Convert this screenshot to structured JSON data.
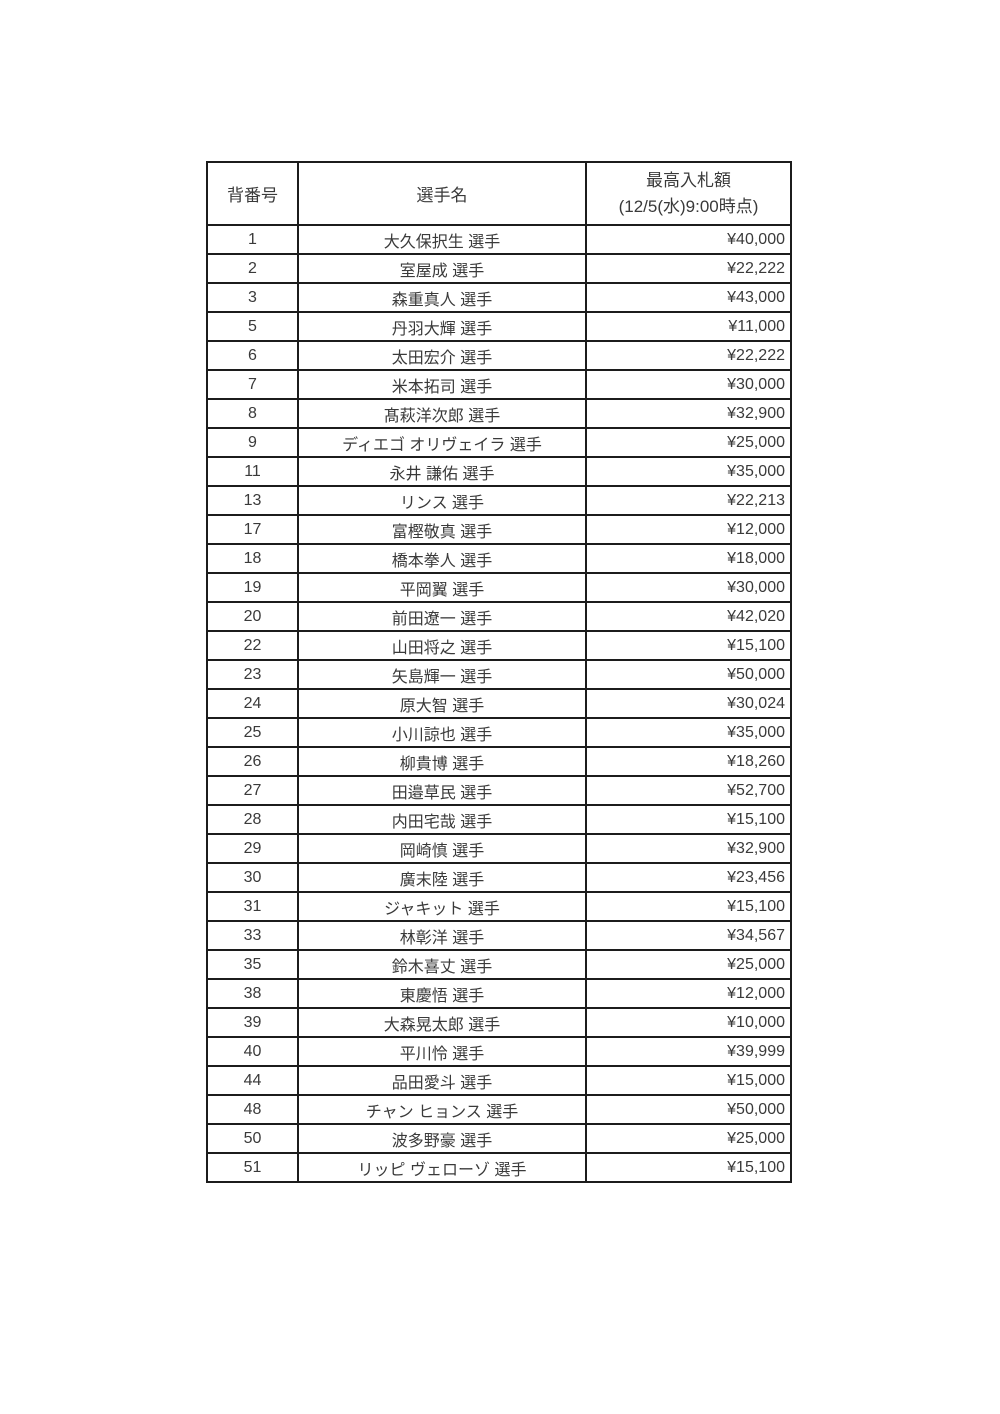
{
  "colors": {
    "background": "#ffffff",
    "border": "#1c1c1c",
    "text": "#3a3a3a"
  },
  "table": {
    "headers": {
      "jersey_number": "背番号",
      "player_name": "選手名",
      "bid_line1": "最高入札額",
      "bid_line2": "(12/5(水)9:00時点)"
    },
    "rows": [
      {
        "number": "1",
        "name": "大久保択生 選手",
        "bid": "¥40,000"
      },
      {
        "number": "2",
        "name": "室屋成 選手",
        "bid": "¥22,222"
      },
      {
        "number": "3",
        "name": "森重真人 選手",
        "bid": "¥43,000"
      },
      {
        "number": "5",
        "name": "丹羽大輝 選手",
        "bid": "¥11,000"
      },
      {
        "number": "6",
        "name": "太田宏介 選手",
        "bid": "¥22,222"
      },
      {
        "number": "7",
        "name": "米本拓司 選手",
        "bid": "¥30,000"
      },
      {
        "number": "8",
        "name": "髙萩洋次郎 選手",
        "bid": "¥32,900"
      },
      {
        "number": "9",
        "name": "ディエゴ オリヴェイラ 選手",
        "bid": "¥25,000"
      },
      {
        "number": "11",
        "name": "永井 謙佑 選手",
        "bid": "¥35,000"
      },
      {
        "number": "13",
        "name": "リンス 選手",
        "bid": "¥22,213"
      },
      {
        "number": "17",
        "name": "富樫敬真 選手",
        "bid": "¥12,000"
      },
      {
        "number": "18",
        "name": "橋本拳人 選手",
        "bid": "¥18,000"
      },
      {
        "number": "19",
        "name": "平岡翼 選手",
        "bid": "¥30,000"
      },
      {
        "number": "20",
        "name": "前田遼一 選手",
        "bid": "¥42,020"
      },
      {
        "number": "22",
        "name": "山田将之 選手",
        "bid": "¥15,100"
      },
      {
        "number": "23",
        "name": "矢島輝一 選手",
        "bid": "¥50,000"
      },
      {
        "number": "24",
        "name": "原大智 選手",
        "bid": "¥30,024"
      },
      {
        "number": "25",
        "name": "小川諒也 選手",
        "bid": "¥35,000"
      },
      {
        "number": "26",
        "name": "柳貴博 選手",
        "bid": "¥18,260"
      },
      {
        "number": "27",
        "name": "田邉草民 選手",
        "bid": "¥52,700"
      },
      {
        "number": "28",
        "name": "内田宅哉 選手",
        "bid": "¥15,100"
      },
      {
        "number": "29",
        "name": "岡崎慎 選手",
        "bid": "¥32,900"
      },
      {
        "number": "30",
        "name": "廣末陸 選手",
        "bid": "¥23,456"
      },
      {
        "number": "31",
        "name": "ジャキット 選手",
        "bid": "¥15,100"
      },
      {
        "number": "33",
        "name": "林彰洋 選手",
        "bid": "¥34,567"
      },
      {
        "number": "35",
        "name": "鈴木喜丈 選手",
        "bid": "¥25,000"
      },
      {
        "number": "38",
        "name": "東慶悟 選手",
        "bid": "¥12,000"
      },
      {
        "number": "39",
        "name": "大森晃太郎 選手",
        "bid": "¥10,000"
      },
      {
        "number": "40",
        "name": "平川怜 選手",
        "bid": "¥39,999"
      },
      {
        "number": "44",
        "name": "品田愛斗 選手",
        "bid": "¥15,000"
      },
      {
        "number": "48",
        "name": "チャン ヒョンス 選手",
        "bid": "¥50,000"
      },
      {
        "number": "50",
        "name": "波多野豪 選手",
        "bid": "¥25,000"
      },
      {
        "number": "51",
        "name": "リッピ ヴェローゾ 選手",
        "bid": "¥15,100"
      }
    ]
  }
}
